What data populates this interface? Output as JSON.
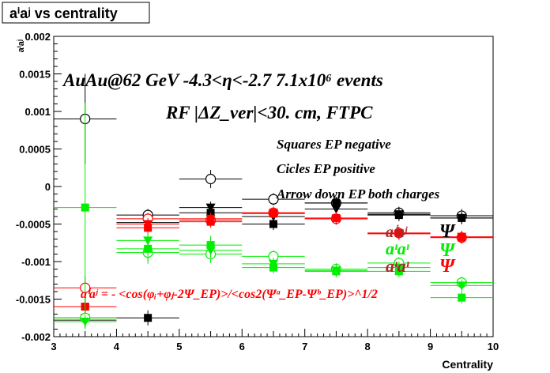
{
  "title": "aⁱaʲ vs centrality",
  "chart_data": {
    "type": "scatter",
    "xlabel": "Centrality",
    "ylabel": "aⁱaʲ",
    "xlim": [
      3,
      10
    ],
    "ylim": [
      -0.002,
      0.002
    ],
    "x_ticks": [
      "3",
      "4",
      "5",
      "6",
      "7",
      "8",
      "9",
      "10"
    ],
    "y_ticks": [
      "0.002",
      "0.0015",
      "0.001",
      "0.0005",
      "0",
      "-0.0005",
      "-0.001",
      "-0.0015",
      "-0.002"
    ],
    "annotations": {
      "line1": "AuAu@62 GeV -4.3<η<-2.7 7.1x10⁶ events",
      "line2": "RF |ΔZ_ver|<30. cm, FTPC",
      "legend1": "Squares EP negative",
      "legend2": "Cicles EP positive",
      "legend3": "Arrow down EP both charges",
      "lbl_aa": "aⁱaʲ",
      "lbl_psi": "Ψ",
      "lbl_pp": "aᶦaᶦ",
      "lbl_psi_pp": "Ψ",
      "lbl_pm": "aᶦaᶦ",
      "lbl_psi_pm": "Ψ",
      "formula": "aⁱaʲ = - <cos(φᵢ+φⱼ-2Ψ_EP)>/<cos2(Ψᵃ_EP-Ψᵇ_EP)>^1/2"
    },
    "series": [
      {
        "group": "black",
        "marker": "circle-open",
        "color": "#000000",
        "x": [
          3.5,
          4.5,
          5.5,
          6.5,
          7.5,
          8.5,
          9.5
        ],
        "y": [
          0.0009,
          -0.00038,
          0.0001,
          -0.00017,
          -0.00022,
          -0.00035,
          -0.00039
        ],
        "err": [
          0.0006,
          8e-05,
          0.00012,
          8e-05,
          8e-05,
          8e-05,
          9e-05
        ]
      },
      {
        "group": "black",
        "marker": "square",
        "color": "#000000",
        "x": [
          3.5,
          4.5,
          5.5,
          6.5,
          7.5,
          8.5,
          9.5
        ],
        "y": [
          -0.0016,
          -0.00175,
          -0.00035,
          -0.0005,
          -0.00022,
          -0.00038,
          -0.00042
        ],
        "err": [
          0.0002,
          0.0001,
          8e-05,
          8e-05,
          8e-05,
          8e-05,
          8e-05
        ]
      },
      {
        "group": "black",
        "marker": "triangle-down",
        "color": "#000000",
        "x": [
          3.5,
          4.5,
          5.5,
          6.5,
          7.5,
          8.5,
          9.5
        ],
        "y": [
          -0.00178,
          -0.00048,
          -0.00028,
          -0.0004,
          -0.0003,
          -0.00037,
          -0.00042
        ],
        "err": [
          0.0001,
          8e-05,
          8e-05,
          8e-05,
          8e-05,
          8e-05,
          8e-05
        ]
      },
      {
        "group": "red",
        "marker": "circle-open",
        "color": "#ff0000",
        "x": [
          3.5,
          4.5,
          5.5,
          6.5,
          7.5,
          8.5,
          9.5
        ],
        "y": [
          -0.00135,
          -0.00043,
          -0.00045,
          -0.00035,
          -0.00043,
          -0.00062,
          -0.00068
        ],
        "err": [
          0.00015,
          8e-05,
          8e-05,
          8e-05,
          8e-05,
          8e-05,
          8e-05
        ]
      },
      {
        "group": "red",
        "marker": "square",
        "color": "#ff0000",
        "x": [
          3.5,
          4.5,
          5.5,
          6.5,
          7.5,
          8.5,
          9.5
        ],
        "y": [
          -0.0016,
          -0.00055,
          -0.00047,
          -0.00036,
          -0.00042,
          -0.00062,
          -0.00068
        ],
        "err": [
          0.0001,
          8e-05,
          8e-05,
          8e-05,
          8e-05,
          8e-05,
          8e-05
        ]
      },
      {
        "group": "red",
        "marker": "triangle-down",
        "color": "#ff0000",
        "x": [
          3.5,
          4.5,
          5.5,
          6.5,
          7.5,
          8.5,
          9.5
        ],
        "y": [
          -0.00175,
          -0.0005,
          -0.00043,
          -0.00035,
          -0.00043,
          -0.00063,
          -0.00067
        ],
        "err": [
          0.0001,
          8e-05,
          8e-05,
          8e-05,
          8e-05,
          8e-05,
          8e-05
        ]
      },
      {
        "group": "green",
        "marker": "circle-open",
        "color": "#00ee00",
        "x": [
          3.5,
          4.5,
          5.5,
          6.5,
          7.5,
          8.5,
          9.5
        ],
        "y": [
          -0.00175,
          -0.00088,
          -0.0009,
          -0.00093,
          -0.0011,
          -0.00102,
          -0.00128
        ],
        "err": [
          0.0001,
          0.00012,
          0.00012,
          8e-05,
          8e-05,
          8e-05,
          8e-05
        ]
      },
      {
        "group": "green",
        "marker": "square",
        "color": "#00ee00",
        "x": [
          3.5,
          4.5,
          5.5,
          6.5,
          7.5,
          8.5,
          9.5
        ],
        "y": [
          -0.00028,
          -0.00083,
          -0.00078,
          -0.00108,
          -0.00113,
          -0.00113,
          -0.00148
        ],
        "err": [
          0.0014,
          0.0002,
          0.00012,
          8e-05,
          8e-05,
          8e-05,
          8e-05
        ]
      },
      {
        "group": "green",
        "marker": "triangle-down",
        "color": "#00ee00",
        "x": [
          3.5,
          4.5,
          5.5,
          6.5,
          7.5,
          8.5,
          9.5
        ],
        "y": [
          -0.0018,
          -0.00072,
          -0.00085,
          -0.00103,
          -0.00112,
          -0.00108,
          -0.00132
        ],
        "err": [
          0.0001,
          0.0001,
          0.0001,
          8e-05,
          8e-05,
          8e-05,
          8e-05
        ]
      }
    ]
  }
}
